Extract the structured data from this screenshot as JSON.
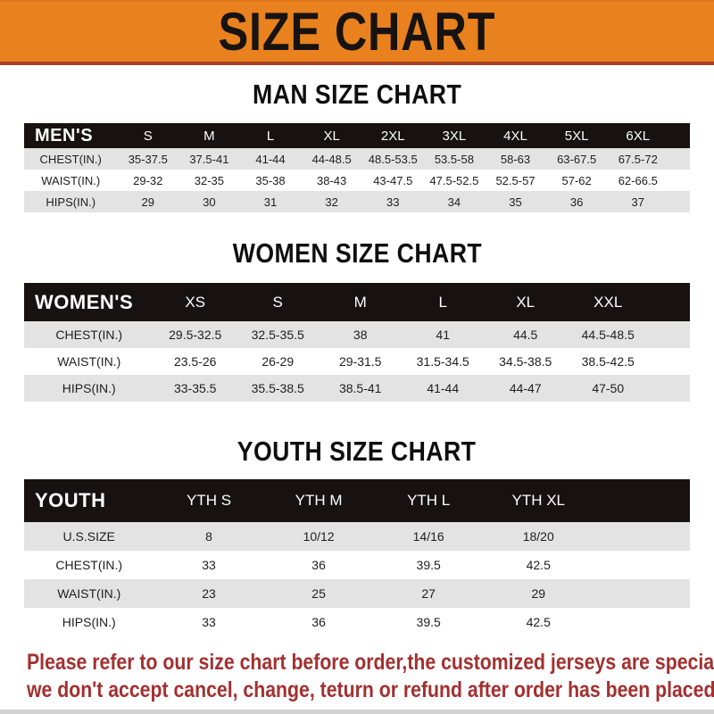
{
  "banner": {
    "title": "SIZE CHART"
  },
  "colors": {
    "banner_bg": "#E8811E",
    "banner_border": "#A84226",
    "bar_bg": "#17120F",
    "row_gray": "#E3E3E3",
    "footer_red": "#A33030"
  },
  "sections": [
    {
      "heading": "MAN SIZE CHART",
      "table": {
        "label": "MEN'S",
        "columns": [
          "S",
          "M",
          "L",
          "XL",
          "2XL",
          "3XL",
          "4XL",
          "5XL",
          "6XL"
        ],
        "rows": [
          {
            "label": "CHEST(IN.)",
            "values": [
              "35-37.5",
              "37.5-41",
              "41-44",
              "44-48.5",
              "48.5-53.5",
              "53.5-58",
              "58-63",
              "63-67.5",
              "67.5-72"
            ]
          },
          {
            "label": "WAIST(IN.)",
            "values": [
              "29-32",
              "32-35",
              "35-38",
              "38-43",
              "43-47.5",
              "47.5-52.5",
              "52.5-57",
              "57-62",
              "62-66.5"
            ]
          },
          {
            "label": "HIPS(IN.)",
            "values": [
              "29",
              "30",
              "31",
              "32",
              "33",
              "34",
              "35",
              "36",
              "37"
            ]
          }
        ]
      }
    },
    {
      "heading": "WOMEN SIZE CHART",
      "table": {
        "label": "WOMEN'S",
        "columns": [
          "XS",
          "S",
          "M",
          "L",
          "XL",
          "XXL"
        ],
        "rows": [
          {
            "label": "CHEST(IN.)",
            "values": [
              "29.5-32.5",
              "32.5-35.5",
              "38",
              "41",
              "44.5",
              "44.5-48.5"
            ]
          },
          {
            "label": "WAIST(IN.)",
            "values": [
              "23.5-26",
              "26-29",
              "29-31.5",
              "31.5-34.5",
              "34.5-38.5",
              "38.5-42.5"
            ]
          },
          {
            "label": "HIPS(IN.)",
            "values": [
              "33-35.5",
              "35.5-38.5",
              "38.5-41",
              "41-44",
              "44-47",
              "47-50"
            ]
          }
        ]
      }
    },
    {
      "heading": "YOUTH SIZE CHART",
      "table": {
        "label": "YOUTH",
        "columns": [
          "YTH S",
          "YTH M",
          "YTH L",
          "YTH XL"
        ],
        "rows": [
          {
            "label": "U.S.SIZE",
            "values": [
              "8",
              "10/12",
              "14/16",
              "18/20"
            ]
          },
          {
            "label": "CHEST(IN.)",
            "values": [
              "33",
              "36",
              "39.5",
              "42.5"
            ]
          },
          {
            "label": "WAIST(IN.)",
            "values": [
              "23",
              "25",
              "27",
              "29"
            ]
          },
          {
            "label": "HIPS(IN.)",
            "values": [
              "33",
              "36",
              "39.5",
              "42.5"
            ]
          }
        ]
      }
    }
  ],
  "footer": {
    "lines": [
      "Please refer to our size chart before order,the customized jerseys are special products,",
      "we don't accept cancel, change, teturn or refund after order has been placed!"
    ]
  }
}
